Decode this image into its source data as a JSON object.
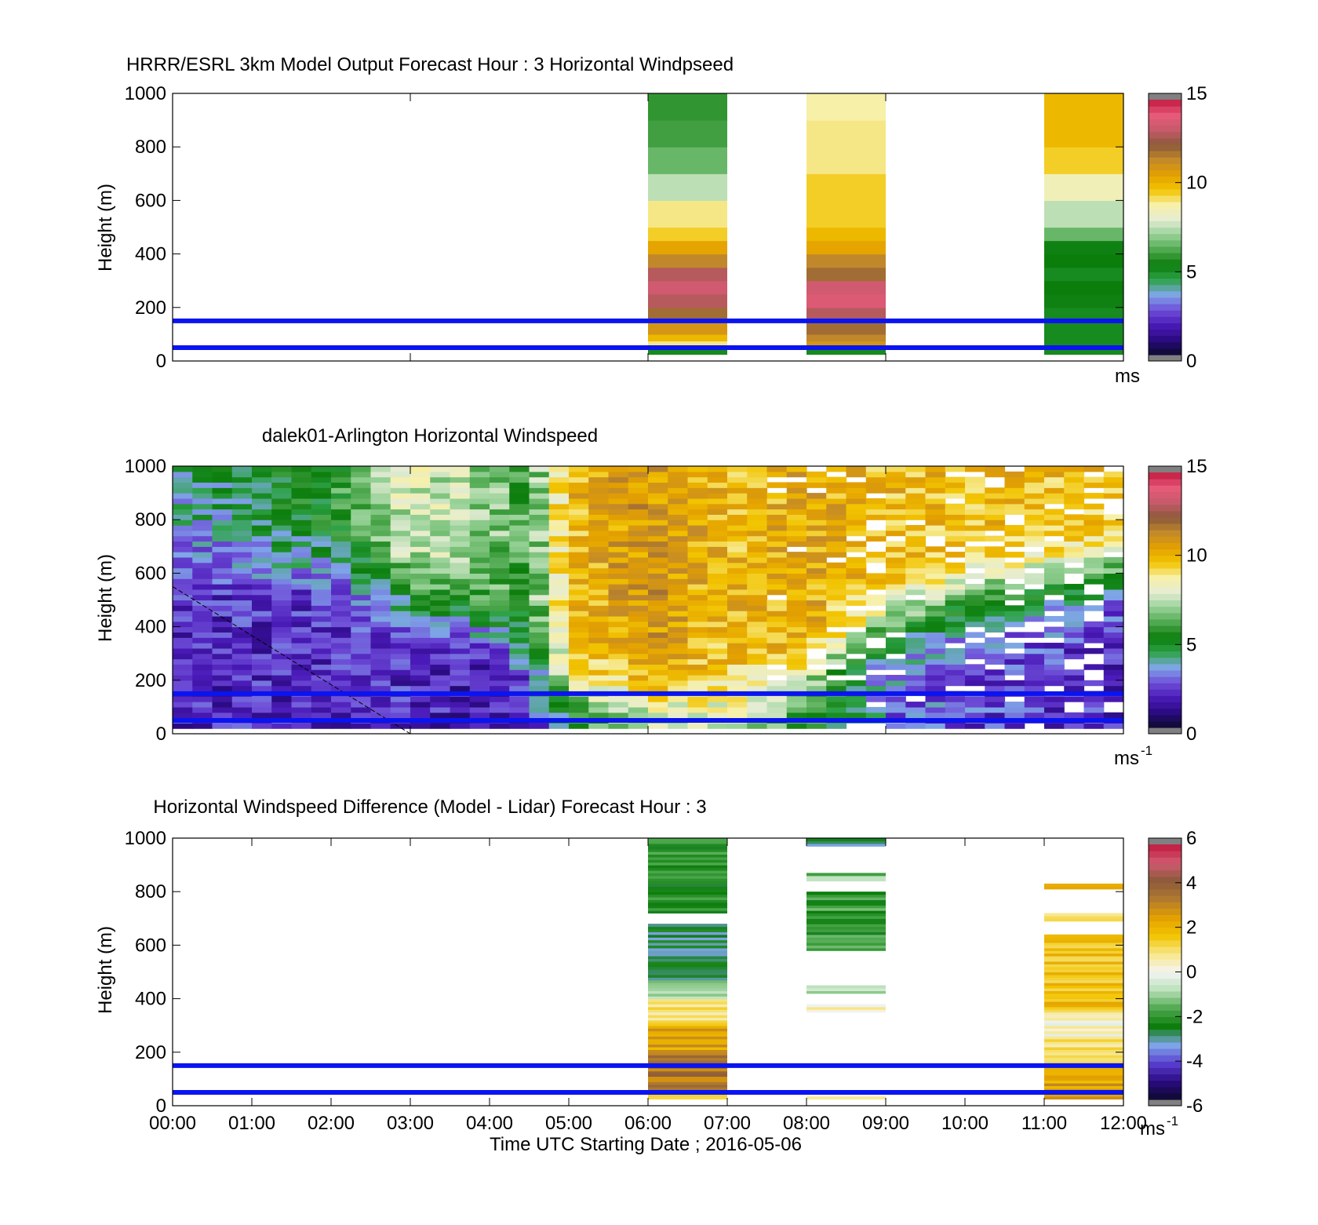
{
  "colors": {
    "reference_line": "#0a14f0",
    "speed_scale": [
      "#0d0a2b",
      "#2a0a80",
      "#4a1ab8",
      "#6f4fd8",
      "#7fa6e8",
      "#2fa34a",
      "#0b7d0b",
      "#4ea84e",
      "#96d196",
      "#e4ecd4",
      "#f7f0a8",
      "#f2c400",
      "#e3a000",
      "#c28a2a",
      "#8b5a3a",
      "#c65a6a",
      "#e85a7a",
      "#c2193f"
    ],
    "diff_scale": [
      "#0d0a2b",
      "#2a0a80",
      "#5a3fd0",
      "#7fa6e8",
      "#0b7d0b",
      "#4ea84e",
      "#b8e0b8",
      "#f4f4f4",
      "#f7e78a",
      "#f2c400",
      "#e3a000",
      "#b07a30",
      "#8b5a3a",
      "#d05a70",
      "#c2193f"
    ]
  },
  "chart_data": [
    {
      "type": "heatmap",
      "title": "HRRR/ESRL 3km Model Output   Forecast Hour : 3 Horizontal Windpseed",
      "xlabel": "",
      "ylabel": "Height (m)",
      "xlim": [
        0,
        12
      ],
      "ylim": [
        0,
        1000
      ],
      "x_ticks": [
        0,
        3,
        6,
        9,
        12
      ],
      "y_ticks": [
        "0",
        "200",
        "400",
        "600",
        "800",
        "1000"
      ],
      "colorbar": {
        "ticks": [
          "0",
          "5",
          "10",
          "15"
        ],
        "range": [
          0,
          15
        ],
        "unit": "ms"
      },
      "reference_heights": [
        50,
        150
      ],
      "columns": [
        {
          "x_start": 6,
          "x_end": 7,
          "heights": [
            25,
            50,
            75,
            100,
            150,
            200,
            250,
            300,
            350,
            400,
            450,
            500,
            600,
            700,
            800,
            900,
            1000
          ],
          "values": [
            5,
            9,
            10,
            11,
            12,
            13,
            13.5,
            13,
            11.5,
            10.5,
            9.5,
            9,
            7.5,
            6.5,
            6,
            5.8,
            6.3
          ]
        },
        {
          "x_start": 8,
          "x_end": 9,
          "heights": [
            25,
            50,
            75,
            100,
            150,
            200,
            250,
            300,
            350,
            400,
            450,
            500,
            600,
            700,
            800,
            900,
            1000
          ],
          "values": [
            5,
            11,
            11.5,
            12,
            13,
            13.8,
            13.5,
            12,
            11.5,
            10.5,
            10,
            9.5,
            9.5,
            9,
            9,
            8.8,
            8.8
          ]
        },
        {
          "x_start": 11,
          "x_end": 12,
          "heights": [
            25,
            50,
            75,
            100,
            150,
            200,
            250,
            300,
            350,
            400,
            450,
            500,
            600,
            700,
            800,
            900,
            1000
          ],
          "values": [
            5,
            5,
            5,
            5,
            5,
            5.2,
            5.3,
            5,
            5.3,
            5.2,
            6.5,
            7.5,
            8.5,
            9.5,
            10,
            10,
            9.8
          ]
        }
      ]
    },
    {
      "type": "heatmap",
      "title": "dalek01-Arlington  Horizontal Windspeed",
      "xlabel": "",
      "ylabel": "Height (m)",
      "xlim": [
        0,
        12
      ],
      "ylim": [
        0,
        1000
      ],
      "x_ticks": [
        0,
        3,
        6,
        9,
        12
      ],
      "y_ticks": [
        "0",
        "200",
        "400",
        "600",
        "800",
        "1000"
      ],
      "colorbar": {
        "ticks": [
          "0",
          "5",
          "10",
          "15"
        ],
        "range": [
          0,
          15
        ],
        "unit": "ms",
        "unit_exponent": "-1"
      },
      "reference_heights": [
        50,
        150
      ],
      "time_step_hours": 0.25,
      "gap_threshold_time": 7.5,
      "profile_keyframes": [
        {
          "t": 0,
          "low": 2,
          "top": 4,
          "transition_height": 700
        },
        {
          "t": 2,
          "low": 2,
          "top": 5.5,
          "transition_height": 620
        },
        {
          "t": 3,
          "low": 2,
          "top": 8,
          "transition_height": 500
        },
        {
          "t": 4,
          "low": 1.5,
          "top": 7,
          "transition_height": 400
        },
        {
          "t": 4.5,
          "low": 2,
          "top": 6,
          "transition_height": 300
        },
        {
          "t": 5,
          "low": 4.5,
          "top": 10,
          "transition_height": 150
        },
        {
          "t": 6,
          "low": 6,
          "top": 11,
          "transition_height": 100
        },
        {
          "t": 7,
          "low": 7,
          "top": 10,
          "transition_height": 100
        },
        {
          "t": 8,
          "low": 5,
          "top": 10.5,
          "transition_height": 200
        },
        {
          "t": 9,
          "low": 3,
          "top": 10,
          "transition_height": 400
        },
        {
          "t": 10,
          "low": 2.5,
          "top": 10,
          "transition_height": 500
        },
        {
          "t": 12,
          "low": 2,
          "top": 10,
          "transition_height": 600
        }
      ],
      "dashed_line": {
        "from": [
          0,
          550
        ],
        "to": [
          3,
          0
        ]
      }
    },
    {
      "type": "heatmap",
      "title": "Horizontal Windspeed Difference (Model - Lidar) Forecast Hour : 3",
      "xlabel": "Time UTC  Starting Date ; 2016-05-06",
      "ylabel": "Height (m)",
      "xlim": [
        0,
        12
      ],
      "ylim": [
        0,
        1000
      ],
      "x_ticks": [
        "00:00",
        "01:00",
        "02:00",
        "03:00",
        "04:00",
        "05:00",
        "06:00",
        "07:00",
        "08:00",
        "09:00",
        "10:00",
        "11:00",
        "12:00"
      ],
      "y_ticks": [
        "0",
        "200",
        "400",
        "600",
        "800",
        "1000"
      ],
      "colorbar": {
        "ticks": [
          "-6",
          "-4",
          "-2",
          "0",
          "2",
          "4",
          "6"
        ],
        "range": [
          -6,
          6
        ],
        "unit": "ms",
        "unit_exponent": "-1"
      },
      "reference_heights": [
        50,
        150
      ],
      "columns": [
        {
          "x_start": 6,
          "x_end": 7,
          "segments": [
            {
              "from": 25,
              "to": 60,
              "value": 2
            },
            {
              "from": 60,
              "to": 200,
              "value": 3.5
            },
            {
              "from": 200,
              "to": 300,
              "value": 2.5
            },
            {
              "from": 300,
              "to": 400,
              "value": 1
            },
            {
              "from": 400,
              "to": 470,
              "value": -1
            },
            {
              "from": 470,
              "to": 680,
              "value": -2.8
            },
            {
              "from": 720,
              "to": 1000,
              "value": -2.3
            }
          ]
        },
        {
          "x_start": 8,
          "x_end": 9,
          "segments": [
            {
              "from": 25,
              "to": 35,
              "value": 1
            },
            {
              "from": 350,
              "to": 380,
              "value": 0.5
            },
            {
              "from": 420,
              "to": 450,
              "value": -1
            },
            {
              "from": 580,
              "to": 800,
              "value": -2
            },
            {
              "from": 840,
              "to": 870,
              "value": -1.2
            },
            {
              "from": 970,
              "to": 1000,
              "value": -2.8
            }
          ]
        },
        {
          "x_start": 11,
          "x_end": 12,
          "segments": [
            {
              "from": 25,
              "to": 150,
              "value": 2.5
            },
            {
              "from": 150,
              "to": 250,
              "value": 1
            },
            {
              "from": 250,
              "to": 350,
              "value": 0.2
            },
            {
              "from": 350,
              "to": 640,
              "value": 1.8
            },
            {
              "from": 690,
              "to": 720,
              "value": 1
            },
            {
              "from": 810,
              "to": 830,
              "value": 2.5
            }
          ]
        }
      ]
    }
  ]
}
